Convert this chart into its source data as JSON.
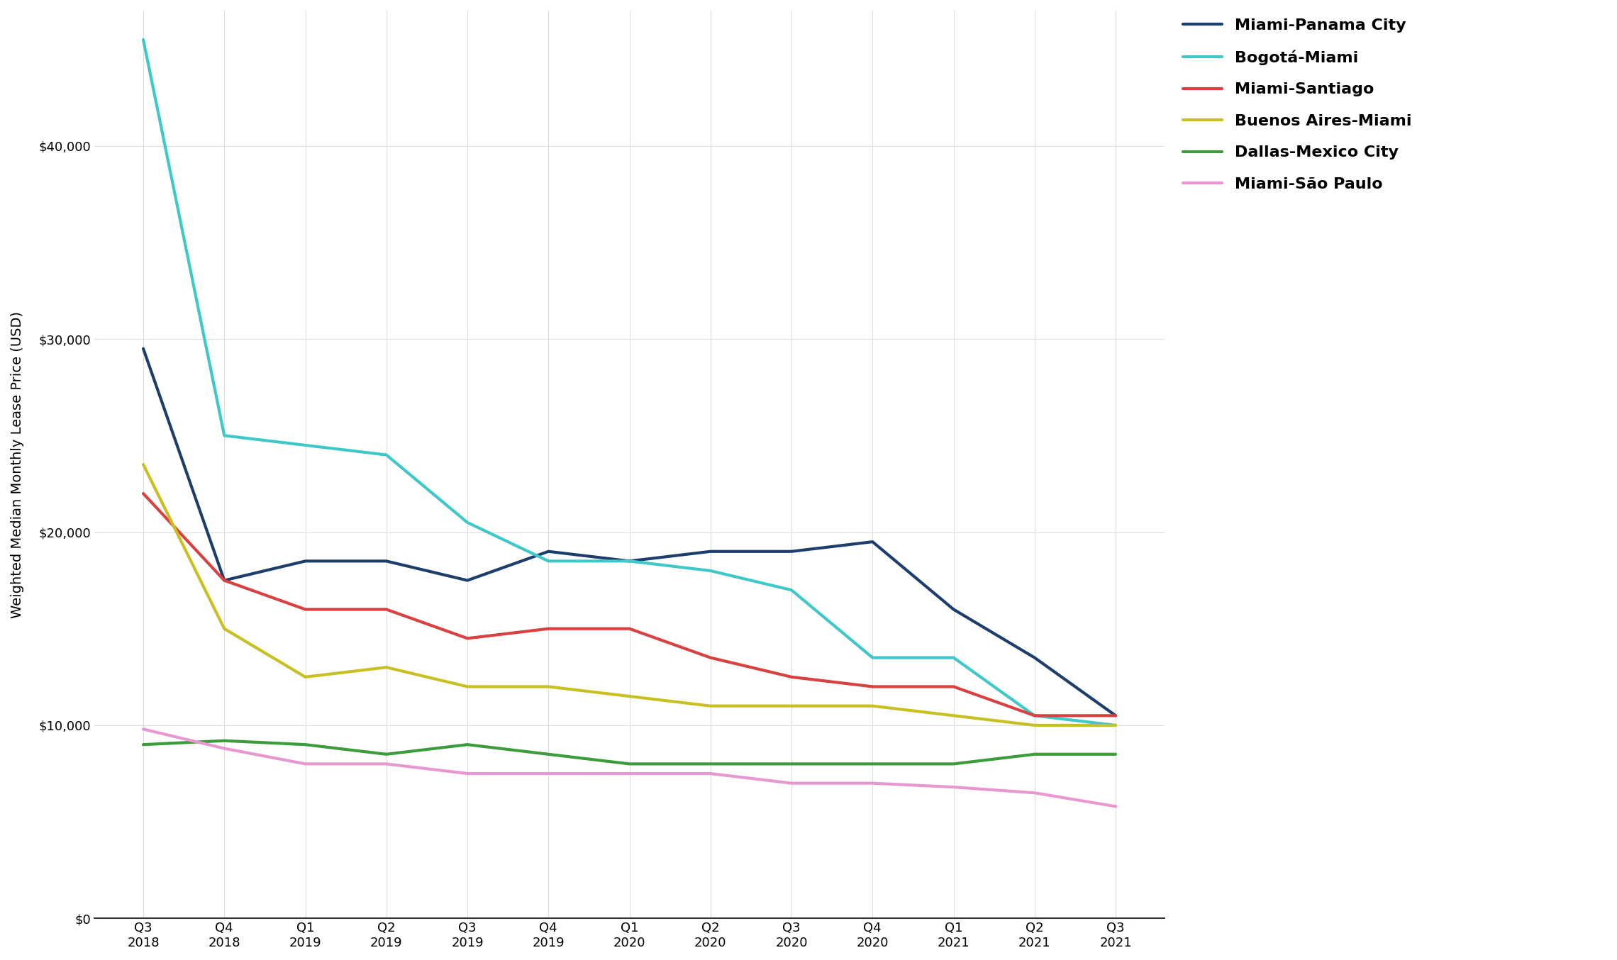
{
  "x_labels": [
    "Q3\n2018",
    "Q4\n2018",
    "Q1\n2019",
    "Q2\n2019",
    "Q3\n2019",
    "Q4\n2019",
    "Q1\n2020",
    "Q2\n2020",
    "Q3\n2020",
    "Q4\n2020",
    "Q1\n2021",
    "Q2\n2021",
    "Q3\n2021"
  ],
  "series": [
    {
      "label": "Miami-Panama City",
      "color": "#1d3d6b",
      "linewidth": 3.0,
      "data": [
        29500,
        17500,
        18500,
        18500,
        17500,
        19000,
        18500,
        19000,
        19000,
        19500,
        16000,
        13500,
        10500
      ]
    },
    {
      "label": "Bogotá-Miami",
      "color": "#3ec8c8",
      "linewidth": 3.0,
      "data": [
        45500,
        25000,
        24500,
        24000,
        20500,
        18500,
        18500,
        18000,
        17000,
        13500,
        13500,
        10500,
        10000
      ]
    },
    {
      "label": "Miami-Santiago",
      "color": "#d94040",
      "linewidth": 3.0,
      "data": [
        22000,
        17500,
        16000,
        16000,
        14500,
        15000,
        15000,
        13500,
        12500,
        12000,
        12000,
        10500,
        10500
      ]
    },
    {
      "label": "Buenos Aires-Miami",
      "color": "#c8c020",
      "linewidth": 3.0,
      "data": [
        23500,
        15000,
        12500,
        13000,
        12000,
        12000,
        11500,
        11000,
        11000,
        11000,
        10500,
        10000,
        10000
      ]
    },
    {
      "label": "Dallas-Mexico City",
      "color": "#3a9c3a",
      "linewidth": 3.0,
      "data": [
        9000,
        9200,
        9000,
        8500,
        9000,
        8500,
        8000,
        8000,
        8000,
        8000,
        8000,
        8500,
        8500
      ]
    },
    {
      "label": "Miami-São Paulo",
      "color": "#e898d0",
      "linewidth": 3.0,
      "data": [
        9800,
        8800,
        8000,
        8000,
        7500,
        7500,
        7500,
        7500,
        7000,
        7000,
        6800,
        6500,
        5800
      ]
    }
  ],
  "ylabel": "Weighted Median Monthly Lease Price (USD)",
  "ylim": [
    0,
    47000
  ],
  "yticks": [
    0,
    10000,
    20000,
    30000,
    40000
  ],
  "background_color": "#ffffff",
  "plot_bg_color": "#ffffff",
  "grid_color": "#dddddd",
  "label_fontsize": 14,
  "tick_fontsize": 13,
  "legend_fontsize": 16
}
